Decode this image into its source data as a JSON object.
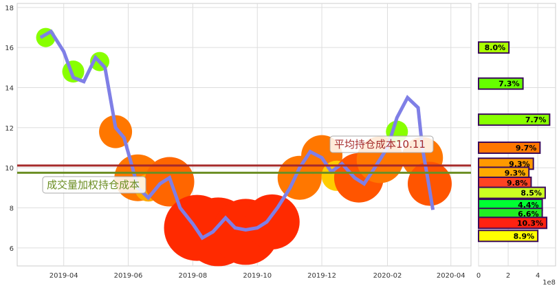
{
  "chart_data": [
    {
      "type": "line",
      "xlim": [
        "2019-02-16",
        "2020-04-20"
      ],
      "ylim": [
        5.1,
        18.2
      ],
      "grid": true,
      "xticks": [
        "2019-04",
        "2019-06",
        "2019-08",
        "2019-10",
        "2019-12",
        "2020-02",
        "2020-04"
      ],
      "yticks": [
        6,
        8,
        10,
        12,
        14,
        16,
        18
      ],
      "line_color": "#7f7fe6",
      "price": [
        [
          "2019-03-10",
          16.5
        ],
        [
          "2019-03-20",
          16.8
        ],
        [
          "2019-04-01",
          15.8
        ],
        [
          "2019-04-10",
          14.5
        ],
        [
          "2019-04-20",
          14.3
        ],
        [
          "2019-05-01",
          15.5
        ],
        [
          "2019-05-10",
          15.0
        ],
        [
          "2019-05-15",
          13.5
        ],
        [
          "2019-05-20",
          12.0
        ],
        [
          "2019-05-28",
          11.5
        ],
        [
          "2019-06-05",
          10.0
        ],
        [
          "2019-06-10",
          9.0
        ],
        [
          "2019-06-20",
          8.5
        ],
        [
          "2019-07-01",
          9.2
        ],
        [
          "2019-07-10",
          9.5
        ],
        [
          "2019-07-20",
          8.0
        ],
        [
          "2019-08-01",
          7.2
        ],
        [
          "2019-08-10",
          6.5
        ],
        [
          "2019-08-20",
          6.8
        ],
        [
          "2019-09-01",
          7.5
        ],
        [
          "2019-09-10",
          7.0
        ],
        [
          "2019-09-20",
          6.9
        ],
        [
          "2019-10-01",
          7.0
        ],
        [
          "2019-10-10",
          7.3
        ],
        [
          "2019-10-20",
          8.0
        ],
        [
          "2019-11-01",
          9.0
        ],
        [
          "2019-11-10",
          10.0
        ],
        [
          "2019-11-20",
          10.8
        ],
        [
          "2019-12-01",
          10.5
        ],
        [
          "2019-12-10",
          9.8
        ],
        [
          "2019-12-20",
          10.2
        ],
        [
          "2020-01-01",
          9.5
        ],
        [
          "2020-01-10",
          9.2
        ],
        [
          "2020-01-20",
          10.0
        ],
        [
          "2020-02-01",
          11.0
        ],
        [
          "2020-02-10",
          12.5
        ],
        [
          "2020-02-20",
          13.5
        ],
        [
          "2020-03-01",
          13.0
        ],
        [
          "2020-03-05",
          11.0
        ],
        [
          "2020-03-10",
          9.5
        ],
        [
          "2020-03-15",
          7.9
        ]
      ],
      "blobs": [
        [
          "2019-03-15",
          16.5,
          "#88ff00",
          14
        ],
        [
          "2019-04-10",
          14.8,
          "#88ff00",
          16
        ],
        [
          "2019-05-05",
          15.3,
          "#88ff00",
          14
        ],
        [
          "2019-05-20",
          11.8,
          "#ff7700",
          24
        ],
        [
          "2019-06-10",
          9.5,
          "#ff7700",
          34
        ],
        [
          "2019-06-20",
          9.0,
          "#ffaa00",
          20
        ],
        [
          "2019-07-10",
          9.3,
          "#ff6600",
          36
        ],
        [
          "2019-08-05",
          7.0,
          "#ff2a00",
          48
        ],
        [
          "2019-08-25",
          6.8,
          "#ff2a00",
          50
        ],
        [
          "2019-09-20",
          6.8,
          "#ff2a00",
          48
        ],
        [
          "2019-10-15",
          7.3,
          "#ff2a00",
          40
        ],
        [
          "2019-11-10",
          9.5,
          "#ff7700",
          32
        ],
        [
          "2019-12-01",
          10.6,
          "#ff7700",
          30
        ],
        [
          "2019-12-15",
          9.6,
          "#ffcc00",
          22
        ],
        [
          "2020-01-05",
          9.5,
          "#ff5500",
          36
        ],
        [
          "2020-01-25",
          10.4,
          "#ff7700",
          34
        ],
        [
          "2020-02-10",
          11.8,
          "#88ff00",
          16
        ],
        [
          "2020-03-05",
          10.5,
          "#ff7700",
          30
        ],
        [
          "2020-03-12",
          9.2,
          "#ff5500",
          32
        ]
      ],
      "hlines": [
        {
          "value": 10.11,
          "color": "#a52a2a",
          "label": "平均持仓成本10.11"
        },
        {
          "value": 9.75,
          "color": "#6b8e23",
          "label": "成交量加权持仓成本"
        }
      ]
    },
    {
      "type": "bar",
      "orientation": "horizontal",
      "xlim": [
        0,
        5.2
      ],
      "xticks": [
        0,
        2,
        4
      ],
      "x_unit": "1e8",
      "ylim": [
        5.1,
        18.2
      ],
      "bars": [
        {
          "price": 16.0,
          "value": 2.05,
          "label": "8.0%",
          "color": "#aaff00"
        },
        {
          "price": 14.2,
          "value": 3.0,
          "label": "7.3%",
          "color": "#66ff00"
        },
        {
          "price": 12.4,
          "value": 4.8,
          "label": "7.7%",
          "color": "#88ff00"
        },
        {
          "price": 11.0,
          "value": 4.15,
          "label": "9.7%",
          "color": "#ff7700"
        },
        {
          "price": 10.2,
          "value": 3.7,
          "label": "9.3%",
          "color": "#ff9900"
        },
        {
          "price": 9.75,
          "value": 3.4,
          "label": "9.3%",
          "color": "#ffaa00"
        },
        {
          "price": 9.25,
          "value": 3.55,
          "label": "9.8%",
          "color": "#ff4422"
        },
        {
          "price": 8.75,
          "value": 4.5,
          "label": "8.5%",
          "color": "#ccff22"
        },
        {
          "price": 8.15,
          "value": 4.3,
          "label": "4.4%",
          "color": "#00ff33"
        },
        {
          "price": 7.7,
          "value": 4.3,
          "label": "6.6%",
          "color": "#22ee22"
        },
        {
          "price": 7.25,
          "value": 4.6,
          "label": "10.3%",
          "color": "#ff2211"
        },
        {
          "price": 6.6,
          "value": 4.0,
          "label": "8.9%",
          "color": "#ffff00"
        }
      ],
      "border_color": "#3a0a5a"
    }
  ]
}
